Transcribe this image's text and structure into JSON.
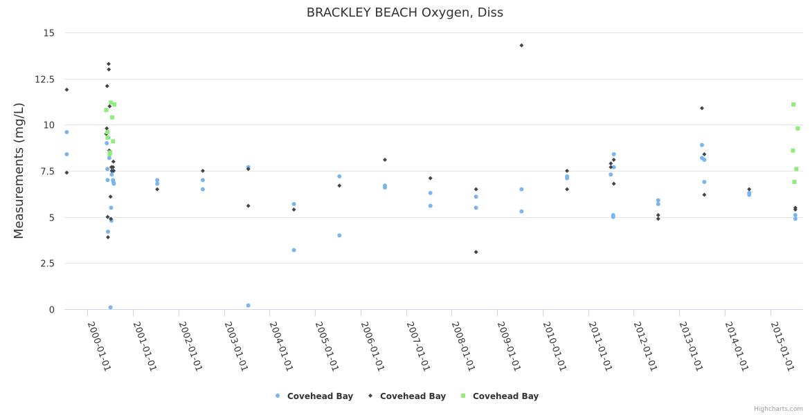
{
  "chart_data": {
    "type": "scatter",
    "title": "BRACKLEY BEACH Oxygen, Diss",
    "ylabel": "Measurements (mg/L)",
    "xlabel": "",
    "xlim": [
      "1999-07-01",
      "2015-09-20"
    ],
    "ylim": [
      0,
      15
    ],
    "yticks": [
      0,
      2.5,
      5,
      7.5,
      10,
      12.5,
      15
    ],
    "ytick_labels": [
      "0",
      "2.5",
      "5",
      "7.5",
      "10",
      "12.5",
      "15"
    ],
    "xticks": [
      "2000-01-01",
      "2001-01-01",
      "2002-01-01",
      "2003-01-01",
      "2004-01-01",
      "2005-01-01",
      "2006-01-01",
      "2007-01-01",
      "2008-01-01",
      "2009-01-01",
      "2010-01-01",
      "2011-01-01",
      "2012-01-01",
      "2013-01-01",
      "2014-01-01",
      "2015-01-01"
    ],
    "grid": true,
    "legend_position": "bottom-center",
    "credits": "Highcharts.com",
    "series": [
      {
        "name": "Covehead Bay",
        "marker": "circle",
        "color": "#7cb5ec",
        "points": [
          [
            "1999-07-20",
            9.6
          ],
          [
            "1999-07-20",
            8.4
          ],
          [
            "2000-06-05",
            9.0
          ],
          [
            "2000-06-10",
            7.6
          ],
          [
            "2000-06-12",
            7.0
          ],
          [
            "2000-06-15",
            4.2
          ],
          [
            "2000-06-18",
            9.3
          ],
          [
            "2000-06-25",
            8.2
          ],
          [
            "2000-06-30",
            8.5
          ],
          [
            "2000-07-05",
            0.1
          ],
          [
            "2000-07-10",
            5.5
          ],
          [
            "2000-07-12",
            4.8
          ],
          [
            "2000-07-15",
            7.3
          ],
          [
            "2000-07-20",
            7.5
          ],
          [
            "2000-07-25",
            7.0
          ],
          [
            "2000-07-28",
            6.9
          ],
          [
            "2000-08-01",
            6.8
          ],
          [
            "2001-07-15",
            7.0
          ],
          [
            "2001-07-15",
            6.8
          ],
          [
            "2002-07-15",
            7.0
          ],
          [
            "2002-07-15",
            6.5
          ],
          [
            "2003-07-15",
            7.7
          ],
          [
            "2003-07-15",
            0.2
          ],
          [
            "2004-07-15",
            5.7
          ],
          [
            "2004-07-15",
            3.2
          ],
          [
            "2005-07-15",
            7.2
          ],
          [
            "2005-07-15",
            4.0
          ],
          [
            "2006-07-15",
            6.7
          ],
          [
            "2006-07-15",
            6.6
          ],
          [
            "2007-07-15",
            6.3
          ],
          [
            "2007-07-15",
            5.6
          ],
          [
            "2008-07-15",
            6.1
          ],
          [
            "2008-07-15",
            5.5
          ],
          [
            "2009-07-15",
            6.5
          ],
          [
            "2009-07-15",
            5.3
          ],
          [
            "2010-07-15",
            7.2
          ],
          [
            "2010-07-15",
            7.1
          ],
          [
            "2011-07-01",
            7.3
          ],
          [
            "2011-07-25",
            8.4
          ],
          [
            "2011-07-25",
            7.7
          ],
          [
            "2011-07-20",
            5.1
          ],
          [
            "2011-07-20",
            5.0
          ],
          [
            "2012-07-15",
            5.9
          ],
          [
            "2012-07-15",
            5.7
          ],
          [
            "2013-07-01",
            8.9
          ],
          [
            "2013-07-01",
            8.2
          ],
          [
            "2013-07-20",
            8.1
          ],
          [
            "2013-07-20",
            6.9
          ],
          [
            "2014-07-15",
            6.3
          ],
          [
            "2014-07-15",
            6.2
          ],
          [
            "2015-07-20",
            5.1
          ],
          [
            "2015-07-20",
            4.9
          ]
        ]
      },
      {
        "name": "Covehead Bay",
        "marker": "diamond",
        "color": "#434348",
        "points": [
          [
            "1999-07-20",
            11.9
          ],
          [
            "1999-07-20",
            7.4
          ],
          [
            "2000-06-01",
            9.5
          ],
          [
            "2000-06-05",
            9.8
          ],
          [
            "2000-06-08",
            12.1
          ],
          [
            "2000-06-12",
            5.0
          ],
          [
            "2000-06-15",
            3.9
          ],
          [
            "2000-06-20",
            13.3
          ],
          [
            "2000-06-22",
            13.0
          ],
          [
            "2000-06-25",
            8.6
          ],
          [
            "2000-06-28",
            11.0
          ],
          [
            "2000-07-02",
            8.5
          ],
          [
            "2000-07-05",
            6.1
          ],
          [
            "2000-07-08",
            4.9
          ],
          [
            "2000-07-12",
            7.7
          ],
          [
            "2000-07-15",
            7.5
          ],
          [
            "2000-07-25",
            7.7
          ],
          [
            "2000-07-28",
            8.0
          ],
          [
            "2000-07-30",
            7.5
          ],
          [
            "2001-07-15",
            6.5
          ],
          [
            "2002-07-15",
            7.5
          ],
          [
            "2003-07-15",
            7.6
          ],
          [
            "2003-07-15",
            5.6
          ],
          [
            "2004-07-15",
            5.4
          ],
          [
            "2005-07-15",
            6.7
          ],
          [
            "2006-07-15",
            8.1
          ],
          [
            "2007-07-15",
            7.1
          ],
          [
            "2008-07-15",
            6.5
          ],
          [
            "2008-07-15",
            3.1
          ],
          [
            "2009-07-15",
            14.3
          ],
          [
            "2010-07-15",
            7.5
          ],
          [
            "2010-07-15",
            6.5
          ],
          [
            "2011-07-01",
            7.9
          ],
          [
            "2011-07-01",
            7.7
          ],
          [
            "2011-07-25",
            8.1
          ],
          [
            "2011-07-25",
            6.8
          ],
          [
            "2012-07-15",
            5.1
          ],
          [
            "2012-07-15",
            4.9
          ],
          [
            "2013-07-01",
            10.9
          ],
          [
            "2013-07-20",
            8.4
          ],
          [
            "2013-07-20",
            6.2
          ],
          [
            "2014-07-15",
            6.5
          ],
          [
            "2015-07-20",
            5.5
          ],
          [
            "2015-07-20",
            5.4
          ]
        ]
      },
      {
        "name": "Covehead Bay",
        "marker": "square",
        "color": "#90ed7d",
        "points": [
          [
            "2000-06-01",
            10.8
          ],
          [
            "2000-06-10",
            9.6
          ],
          [
            "2000-06-12",
            9.3
          ],
          [
            "2000-06-28",
            8.4
          ],
          [
            "2000-07-02",
            8.5
          ],
          [
            "2000-07-08",
            11.2
          ],
          [
            "2000-07-18",
            10.4
          ],
          [
            "2000-07-25",
            9.1
          ],
          [
            "2000-08-05",
            11.1
          ],
          [
            "2015-07-01",
            8.6
          ],
          [
            "2015-07-05",
            11.1
          ],
          [
            "2015-07-12",
            6.9
          ],
          [
            "2015-07-28",
            7.6
          ],
          [
            "2015-08-08",
            9.8
          ]
        ]
      }
    ]
  }
}
